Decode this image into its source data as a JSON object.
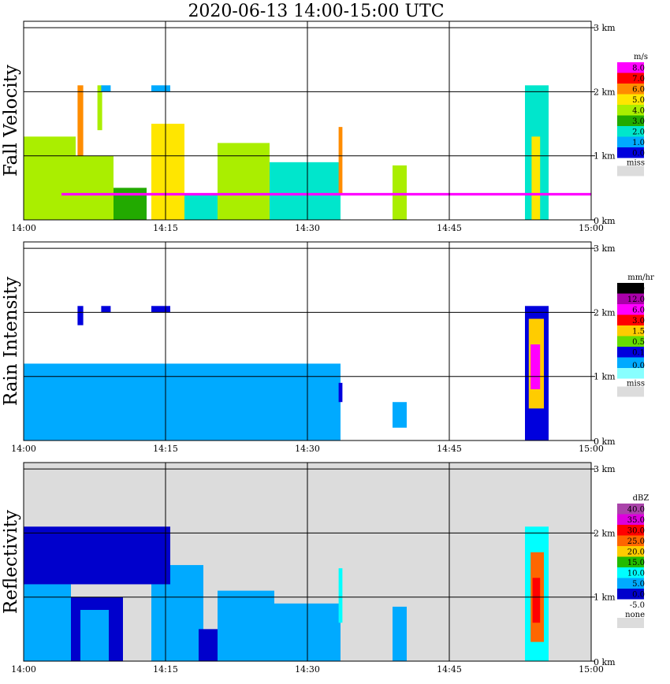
{
  "title": "2020-06-13   14:00-15:00 UTC",
  "time_axis": {
    "ticks": [
      "14:00",
      "14:15",
      "14:30",
      "14:45",
      "15:00"
    ],
    "range_minutes": [
      0,
      60
    ]
  },
  "height_axis": {
    "ticks": [
      "0 km",
      "1 km",
      "2 km",
      "3 km"
    ],
    "range_km": [
      0,
      3.1
    ]
  },
  "colors": {
    "missing": "#dcdcdc",
    "grid": "#000000",
    "frame": "#000000"
  },
  "chart_data": [
    {
      "type": "heatmap",
      "ylabel": "Fall Velocity",
      "legend": {
        "unit": "m/s",
        "labels": [
          "8.0",
          "7.0",
          "6.0",
          "5.0",
          "4.0",
          "3.0",
          "2.0",
          "1.0",
          "0.0"
        ],
        "colors": [
          "#ff00ff",
          "#ff0000",
          "#ff8c00",
          "#ffe600",
          "#aaee00",
          "#22aa00",
          "#00e6cc",
          "#00aaff",
          "#0000dd"
        ],
        "missing_label": "miss"
      },
      "background": "#ffffff",
      "cells": [
        {
          "t0": 0.0,
          "t1": 5.5,
          "h0": 0.0,
          "h1": 1.3,
          "value": 4.5
        },
        {
          "t0": 5.5,
          "t1": 9.5,
          "h0": 0.0,
          "h1": 1.0,
          "value": 4.0
        },
        {
          "t0": 5.7,
          "t1": 6.3,
          "h0": 1.0,
          "h1": 2.1,
          "value": 6.0
        },
        {
          "t0": 7.8,
          "t1": 8.3,
          "h0": 1.4,
          "h1": 2.1,
          "value": 4.5
        },
        {
          "t0": 8.2,
          "t1": 9.2,
          "h0": 2.0,
          "h1": 2.1,
          "value": 1.0
        },
        {
          "t0": 9.5,
          "t1": 13.0,
          "h0": 0.0,
          "h1": 0.5,
          "value": 3.0
        },
        {
          "t0": 13.5,
          "t1": 15.5,
          "h0": 2.0,
          "h1": 2.1,
          "value": 1.5
        },
        {
          "t0": 13.5,
          "t1": 17.0,
          "h0": 0.0,
          "h1": 1.5,
          "value": 5.0
        },
        {
          "t0": 17.0,
          "t1": 21.0,
          "h0": 0.0,
          "h1": 0.4,
          "value": 2.0
        },
        {
          "t0": 20.5,
          "t1": 26.0,
          "h0": 0.0,
          "h1": 1.2,
          "value": 4.0
        },
        {
          "t0": 26.0,
          "t1": 33.5,
          "h0": 0.0,
          "h1": 0.9,
          "value": 2.5
        },
        {
          "t0": 33.3,
          "t1": 33.7,
          "h0": 0.4,
          "h1": 1.45,
          "value": 6.5
        },
        {
          "t0": 39.0,
          "t1": 40.5,
          "h0": 0.0,
          "h1": 0.85,
          "value": 4.0
        },
        {
          "t0": 53.0,
          "t1": 55.5,
          "h0": 0.0,
          "h1": 2.1,
          "value": 2.5
        },
        {
          "t0": 53.7,
          "t1": 54.6,
          "h0": 0.0,
          "h1": 1.3,
          "value": 5.0
        },
        {
          "t0": 4.0,
          "t1": 60.0,
          "h0": 0.38,
          "h1": 0.42,
          "value": 8.0
        }
      ]
    },
    {
      "type": "heatmap",
      "ylabel": "Rain Intensity",
      "legend": {
        "unit": "mm/hr",
        "labels": [
          "48.0",
          "12.0",
          "6.0",
          "3.0",
          "1.5",
          "0.5",
          "0.1",
          "0.0"
        ],
        "colors": [
          "#000000",
          "#aa00aa",
          "#ff00ff",
          "#ff0000",
          "#ffcc00",
          "#66dd00",
          "#0000dd",
          "#00aaff",
          "#88ffff"
        ],
        "missing_label": "miss"
      },
      "background": "#ffffff",
      "cells": [
        {
          "t0": 0.0,
          "t1": 33.5,
          "h0": 0.0,
          "h1": 1.2,
          "value": 0.05
        },
        {
          "t0": 5.7,
          "t1": 6.3,
          "h0": 1.8,
          "h1": 2.1,
          "value": 0.3
        },
        {
          "t0": 8.2,
          "t1": 9.2,
          "h0": 2.0,
          "h1": 2.1,
          "value": 0.3
        },
        {
          "t0": 13.5,
          "t1": 15.5,
          "h0": 2.0,
          "h1": 2.1,
          "value": 0.3
        },
        {
          "t0": 33.3,
          "t1": 33.7,
          "h0": 0.6,
          "h1": 0.9,
          "value": 0.3
        },
        {
          "t0": 39.0,
          "t1": 40.5,
          "h0": 0.2,
          "h1": 0.6,
          "value": 0.05
        },
        {
          "t0": 53.0,
          "t1": 55.5,
          "h0": 0.0,
          "h1": 2.1,
          "value": 0.3
        },
        {
          "t0": 53.4,
          "t1": 55.0,
          "h0": 0.5,
          "h1": 1.9,
          "value": 2.0
        },
        {
          "t0": 53.6,
          "t1": 54.6,
          "h0": 0.8,
          "h1": 1.5,
          "value": 8.0
        }
      ]
    },
    {
      "type": "heatmap",
      "ylabel": "Reflectivity",
      "legend": {
        "unit": "dBZ",
        "labels": [
          "40.0",
          "35.0",
          "30.0",
          "25.0",
          "20.0",
          "15.0",
          "10.0",
          "5.0",
          "0.0",
          "-5.0"
        ],
        "colors": [
          "#aa44aa",
          "#dd00dd",
          "#ff0000",
          "#ff6600",
          "#ffcc00",
          "#22bb00",
          "#00ffff",
          "#00aaff",
          "#0000cc",
          "#ffffff"
        ],
        "missing_label": "none"
      },
      "background": "#dcdcdc",
      "cells": [
        {
          "t0": 0.0,
          "t1": 5.0,
          "h0": 0.0,
          "h1": 1.2,
          "value": 7.5
        },
        {
          "t0": 5.0,
          "t1": 10.5,
          "h0": 0.0,
          "h1": 1.0,
          "value": 2.5
        },
        {
          "t0": 6.0,
          "t1": 9.0,
          "h0": 0.0,
          "h1": 0.8,
          "value": 7.5
        },
        {
          "t0": 13.5,
          "t1": 19.0,
          "h0": 0.0,
          "h1": 1.5,
          "value": 7.5
        },
        {
          "t0": 18.5,
          "t1": 20.5,
          "h0": 0.0,
          "h1": 0.5,
          "value": 2.5
        },
        {
          "t0": 20.5,
          "t1": 26.5,
          "h0": 0.0,
          "h1": 1.1,
          "value": 7.5
        },
        {
          "t0": 26.5,
          "t1": 33.5,
          "h0": 0.0,
          "h1": 0.9,
          "value": 5.0
        },
        {
          "t0": 33.3,
          "t1": 33.7,
          "h0": 0.6,
          "h1": 1.45,
          "value": 12.5
        },
        {
          "t0": 39.0,
          "t1": 40.5,
          "h0": 0.0,
          "h1": 0.85,
          "value": 7.5
        },
        {
          "t0": 53.0,
          "t1": 55.5,
          "h0": 0.0,
          "h1": 2.1,
          "value": 12.5
        },
        {
          "t0": 53.6,
          "t1": 55.0,
          "h0": 0.3,
          "h1": 1.7,
          "value": 25.0
        },
        {
          "t0": 53.8,
          "t1": 54.6,
          "h0": 0.6,
          "h1": 1.3,
          "value": 32.5
        },
        {
          "t0": 0.0,
          "t1": 15.5,
          "h0": 1.2,
          "h1": 2.1,
          "value": 2.5
        }
      ]
    }
  ]
}
